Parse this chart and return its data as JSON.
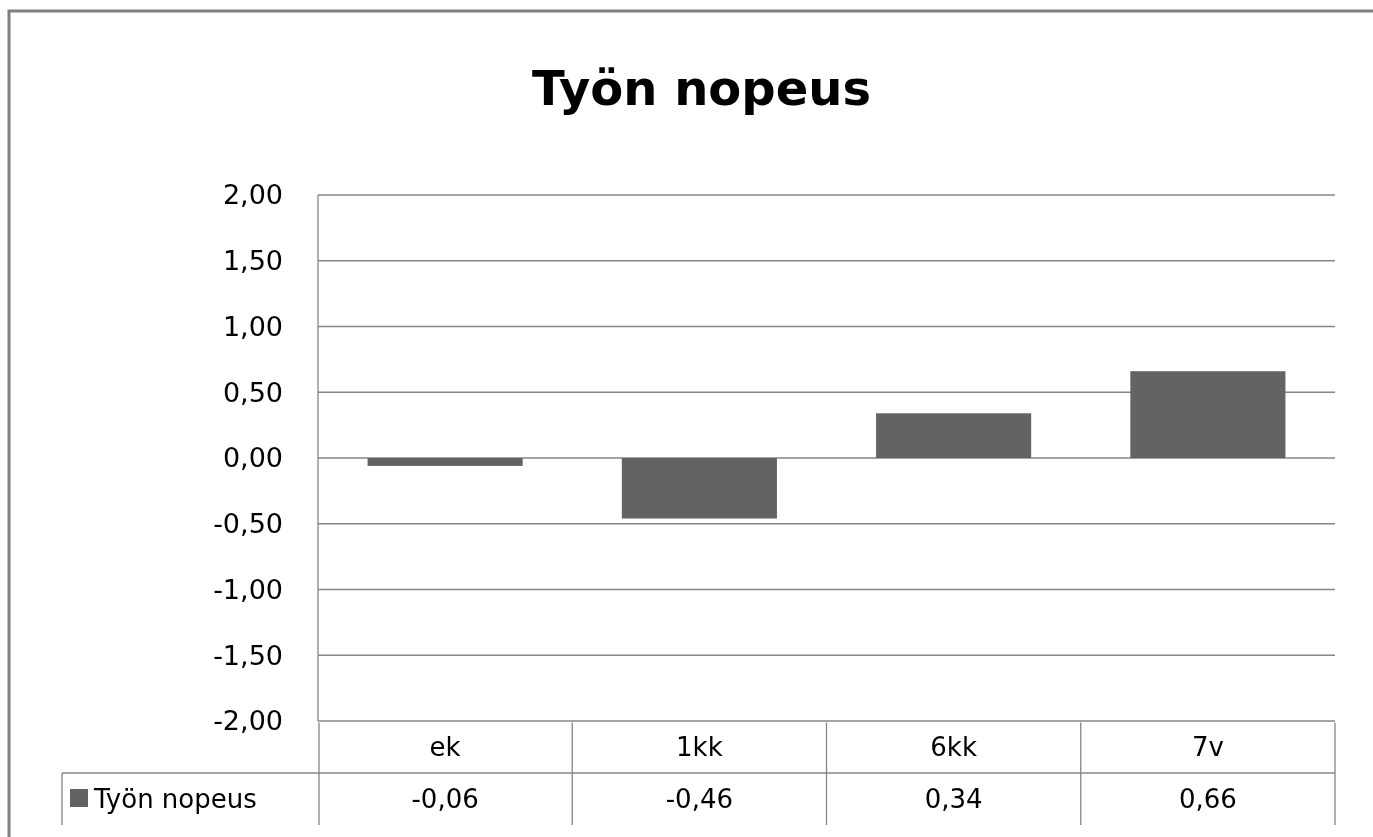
{
  "chart_data": {
    "type": "bar",
    "title": "Työn nopeus",
    "categories": [
      "ek",
      "1kk",
      "6kk",
      "7v"
    ],
    "series": [
      {
        "name": "Työn nopeus",
        "color": "#636363",
        "values": [
          -0.06,
          -0.46,
          0.34,
          0.66
        ],
        "value_labels": [
          "-0,06",
          "-0,46",
          "0,34",
          "0,66"
        ]
      }
    ],
    "ylim": [
      -2,
      2
    ],
    "yticks": [
      {
        "value": -2,
        "label": "-2,00"
      },
      {
        "value": -1.5,
        "label": "-1,50"
      },
      {
        "value": -1,
        "label": "-1,00"
      },
      {
        "value": -0.5,
        "label": "-0,50"
      },
      {
        "value": 0,
        "label": "0,00"
      },
      {
        "value": 0.5,
        "label": "0,50"
      },
      {
        "value": 1,
        "label": "1,00"
      },
      {
        "value": 1.5,
        "label": "1,50"
      },
      {
        "value": 2,
        "label": "2,00"
      }
    ],
    "grid": "y",
    "legend": "bottom"
  }
}
